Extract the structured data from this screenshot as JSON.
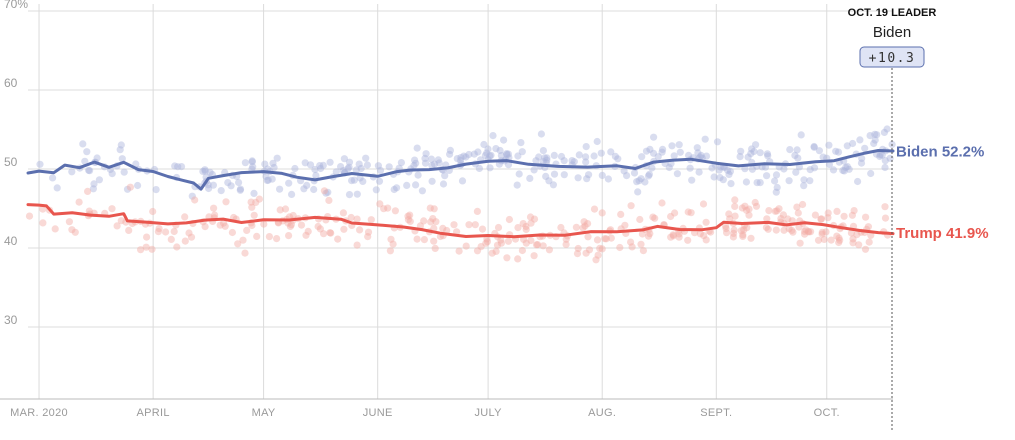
{
  "chart_data": {
    "type": "line",
    "title": "",
    "xlabel": "",
    "ylabel": "",
    "ylim": [
      20,
      70
    ],
    "y_ticks": [
      {
        "value": 70,
        "label": "70%"
      },
      {
        "value": 60,
        "label": "60"
      },
      {
        "value": 50,
        "label": "50"
      },
      {
        "value": 40,
        "label": "40"
      },
      {
        "value": 30,
        "label": "30"
      }
    ],
    "x_ticks": [
      {
        "date": "2020-03-01",
        "label": "MAR. 2020"
      },
      {
        "date": "2020-04-01",
        "label": "APRIL"
      },
      {
        "date": "2020-05-01",
        "label": "MAY"
      },
      {
        "date": "2020-06-01",
        "label": "JUNE"
      },
      {
        "date": "2020-07-01",
        "label": "JULY"
      },
      {
        "date": "2020-08-01",
        "label": "AUG."
      },
      {
        "date": "2020-09-01",
        "label": "SEPT."
      },
      {
        "date": "2020-10-01",
        "label": "OCT."
      }
    ],
    "xlim": [
      "2020-02-27",
      "2020-10-19"
    ],
    "grid": true,
    "series": [
      {
        "name": "Biden",
        "color": "#5b6fae",
        "dot_color": "#aab4dc",
        "end_value": 52.2,
        "end_label": "Biden 52.2%",
        "points": [
          [
            "2020-02-27",
            49.5
          ],
          [
            "2020-03-01",
            49.8
          ],
          [
            "2020-03-05",
            49.6
          ],
          [
            "2020-03-08",
            50.5
          ],
          [
            "2020-03-12",
            50.1
          ],
          [
            "2020-03-16",
            50.8
          ],
          [
            "2020-03-20",
            50.2
          ],
          [
            "2020-03-24",
            50.9
          ],
          [
            "2020-03-28",
            50.0
          ],
          [
            "2020-04-01",
            49.7
          ],
          [
            "2020-04-05",
            49.0
          ],
          [
            "2020-04-09",
            48.5
          ],
          [
            "2020-04-12",
            48.2
          ],
          [
            "2020-04-14",
            47.5
          ],
          [
            "2020-04-16",
            48.9
          ],
          [
            "2020-04-20",
            49.2
          ],
          [
            "2020-04-25",
            49.5
          ],
          [
            "2020-05-01",
            49.6
          ],
          [
            "2020-05-06",
            49.4
          ],
          [
            "2020-05-10",
            49.0
          ],
          [
            "2020-05-15",
            48.7
          ],
          [
            "2020-05-20",
            49.1
          ],
          [
            "2020-05-25",
            49.4
          ],
          [
            "2020-06-01",
            49.0
          ],
          [
            "2020-06-06",
            49.6
          ],
          [
            "2020-06-10",
            49.9
          ],
          [
            "2020-06-15",
            50.0
          ],
          [
            "2020-06-20",
            50.2
          ],
          [
            "2020-06-25",
            50.6
          ],
          [
            "2020-07-01",
            50.9
          ],
          [
            "2020-07-06",
            51.0
          ],
          [
            "2020-07-12",
            50.6
          ],
          [
            "2020-07-20",
            50.4
          ],
          [
            "2020-07-28",
            50.3
          ],
          [
            "2020-08-05",
            50.4
          ],
          [
            "2020-08-10",
            50.0
          ],
          [
            "2020-08-15",
            50.8
          ],
          [
            "2020-08-20",
            51.1
          ],
          [
            "2020-08-25",
            51.3
          ],
          [
            "2020-09-01",
            50.8
          ],
          [
            "2020-09-07",
            50.4
          ],
          [
            "2020-09-14",
            50.6
          ],
          [
            "2020-09-21",
            50.5
          ],
          [
            "2020-09-28",
            50.9
          ],
          [
            "2020-10-03",
            51.1
          ],
          [
            "2020-10-07",
            51.6
          ],
          [
            "2020-10-11",
            52.0
          ],
          [
            "2020-10-15",
            52.3
          ],
          [
            "2020-10-19",
            52.2
          ]
        ]
      },
      {
        "name": "Trump",
        "color": "#e8564e",
        "dot_color": "#f2aaa5",
        "end_value": 41.9,
        "end_label": "Trump 41.9%",
        "points": [
          [
            "2020-02-27",
            45.5
          ],
          [
            "2020-03-01",
            45.5
          ],
          [
            "2020-03-03",
            45.4
          ],
          [
            "2020-03-05",
            44.3
          ],
          [
            "2020-03-10",
            44.4
          ],
          [
            "2020-03-15",
            44.1
          ],
          [
            "2020-03-20",
            44.0
          ],
          [
            "2020-03-24",
            44.4
          ],
          [
            "2020-03-25",
            43.5
          ],
          [
            "2020-03-30",
            43.3
          ],
          [
            "2020-04-05",
            43.0
          ],
          [
            "2020-04-10",
            43.1
          ],
          [
            "2020-04-15",
            43.5
          ],
          [
            "2020-04-20",
            43.7
          ],
          [
            "2020-04-25",
            43.3
          ],
          [
            "2020-05-01",
            43.6
          ],
          [
            "2020-05-08",
            43.5
          ],
          [
            "2020-05-15",
            43.8
          ],
          [
            "2020-05-22",
            43.6
          ],
          [
            "2020-05-25",
            43.2
          ],
          [
            "2020-06-01",
            43.0
          ],
          [
            "2020-06-08",
            42.7
          ],
          [
            "2020-06-13",
            42.3
          ],
          [
            "2020-06-18",
            41.8
          ],
          [
            "2020-06-25",
            41.4
          ],
          [
            "2020-07-01",
            41.6
          ],
          [
            "2020-07-08",
            41.5
          ],
          [
            "2020-07-15",
            41.7
          ],
          [
            "2020-07-22",
            41.6
          ],
          [
            "2020-07-29",
            42.0
          ],
          [
            "2020-08-05",
            42.0
          ],
          [
            "2020-08-12",
            42.3
          ],
          [
            "2020-08-16",
            42.8
          ],
          [
            "2020-08-22",
            42.4
          ],
          [
            "2020-08-28",
            42.3
          ],
          [
            "2020-09-01",
            42.5
          ],
          [
            "2020-09-03",
            43.2
          ],
          [
            "2020-09-08",
            43.1
          ],
          [
            "2020-09-15",
            43.3
          ],
          [
            "2020-09-20",
            43.0
          ],
          [
            "2020-09-25",
            43.2
          ],
          [
            "2020-09-30",
            42.9
          ],
          [
            "2020-10-05",
            42.5
          ],
          [
            "2020-10-10",
            42.2
          ],
          [
            "2020-10-15",
            42.0
          ],
          [
            "2020-10-19",
            41.9
          ]
        ]
      }
    ],
    "scatter_note": "individual polls shown as faint dots around each average",
    "leader_callout": {
      "title": "OCT. 19 LEADER",
      "name": "Biden",
      "margin": "+10.3"
    }
  }
}
